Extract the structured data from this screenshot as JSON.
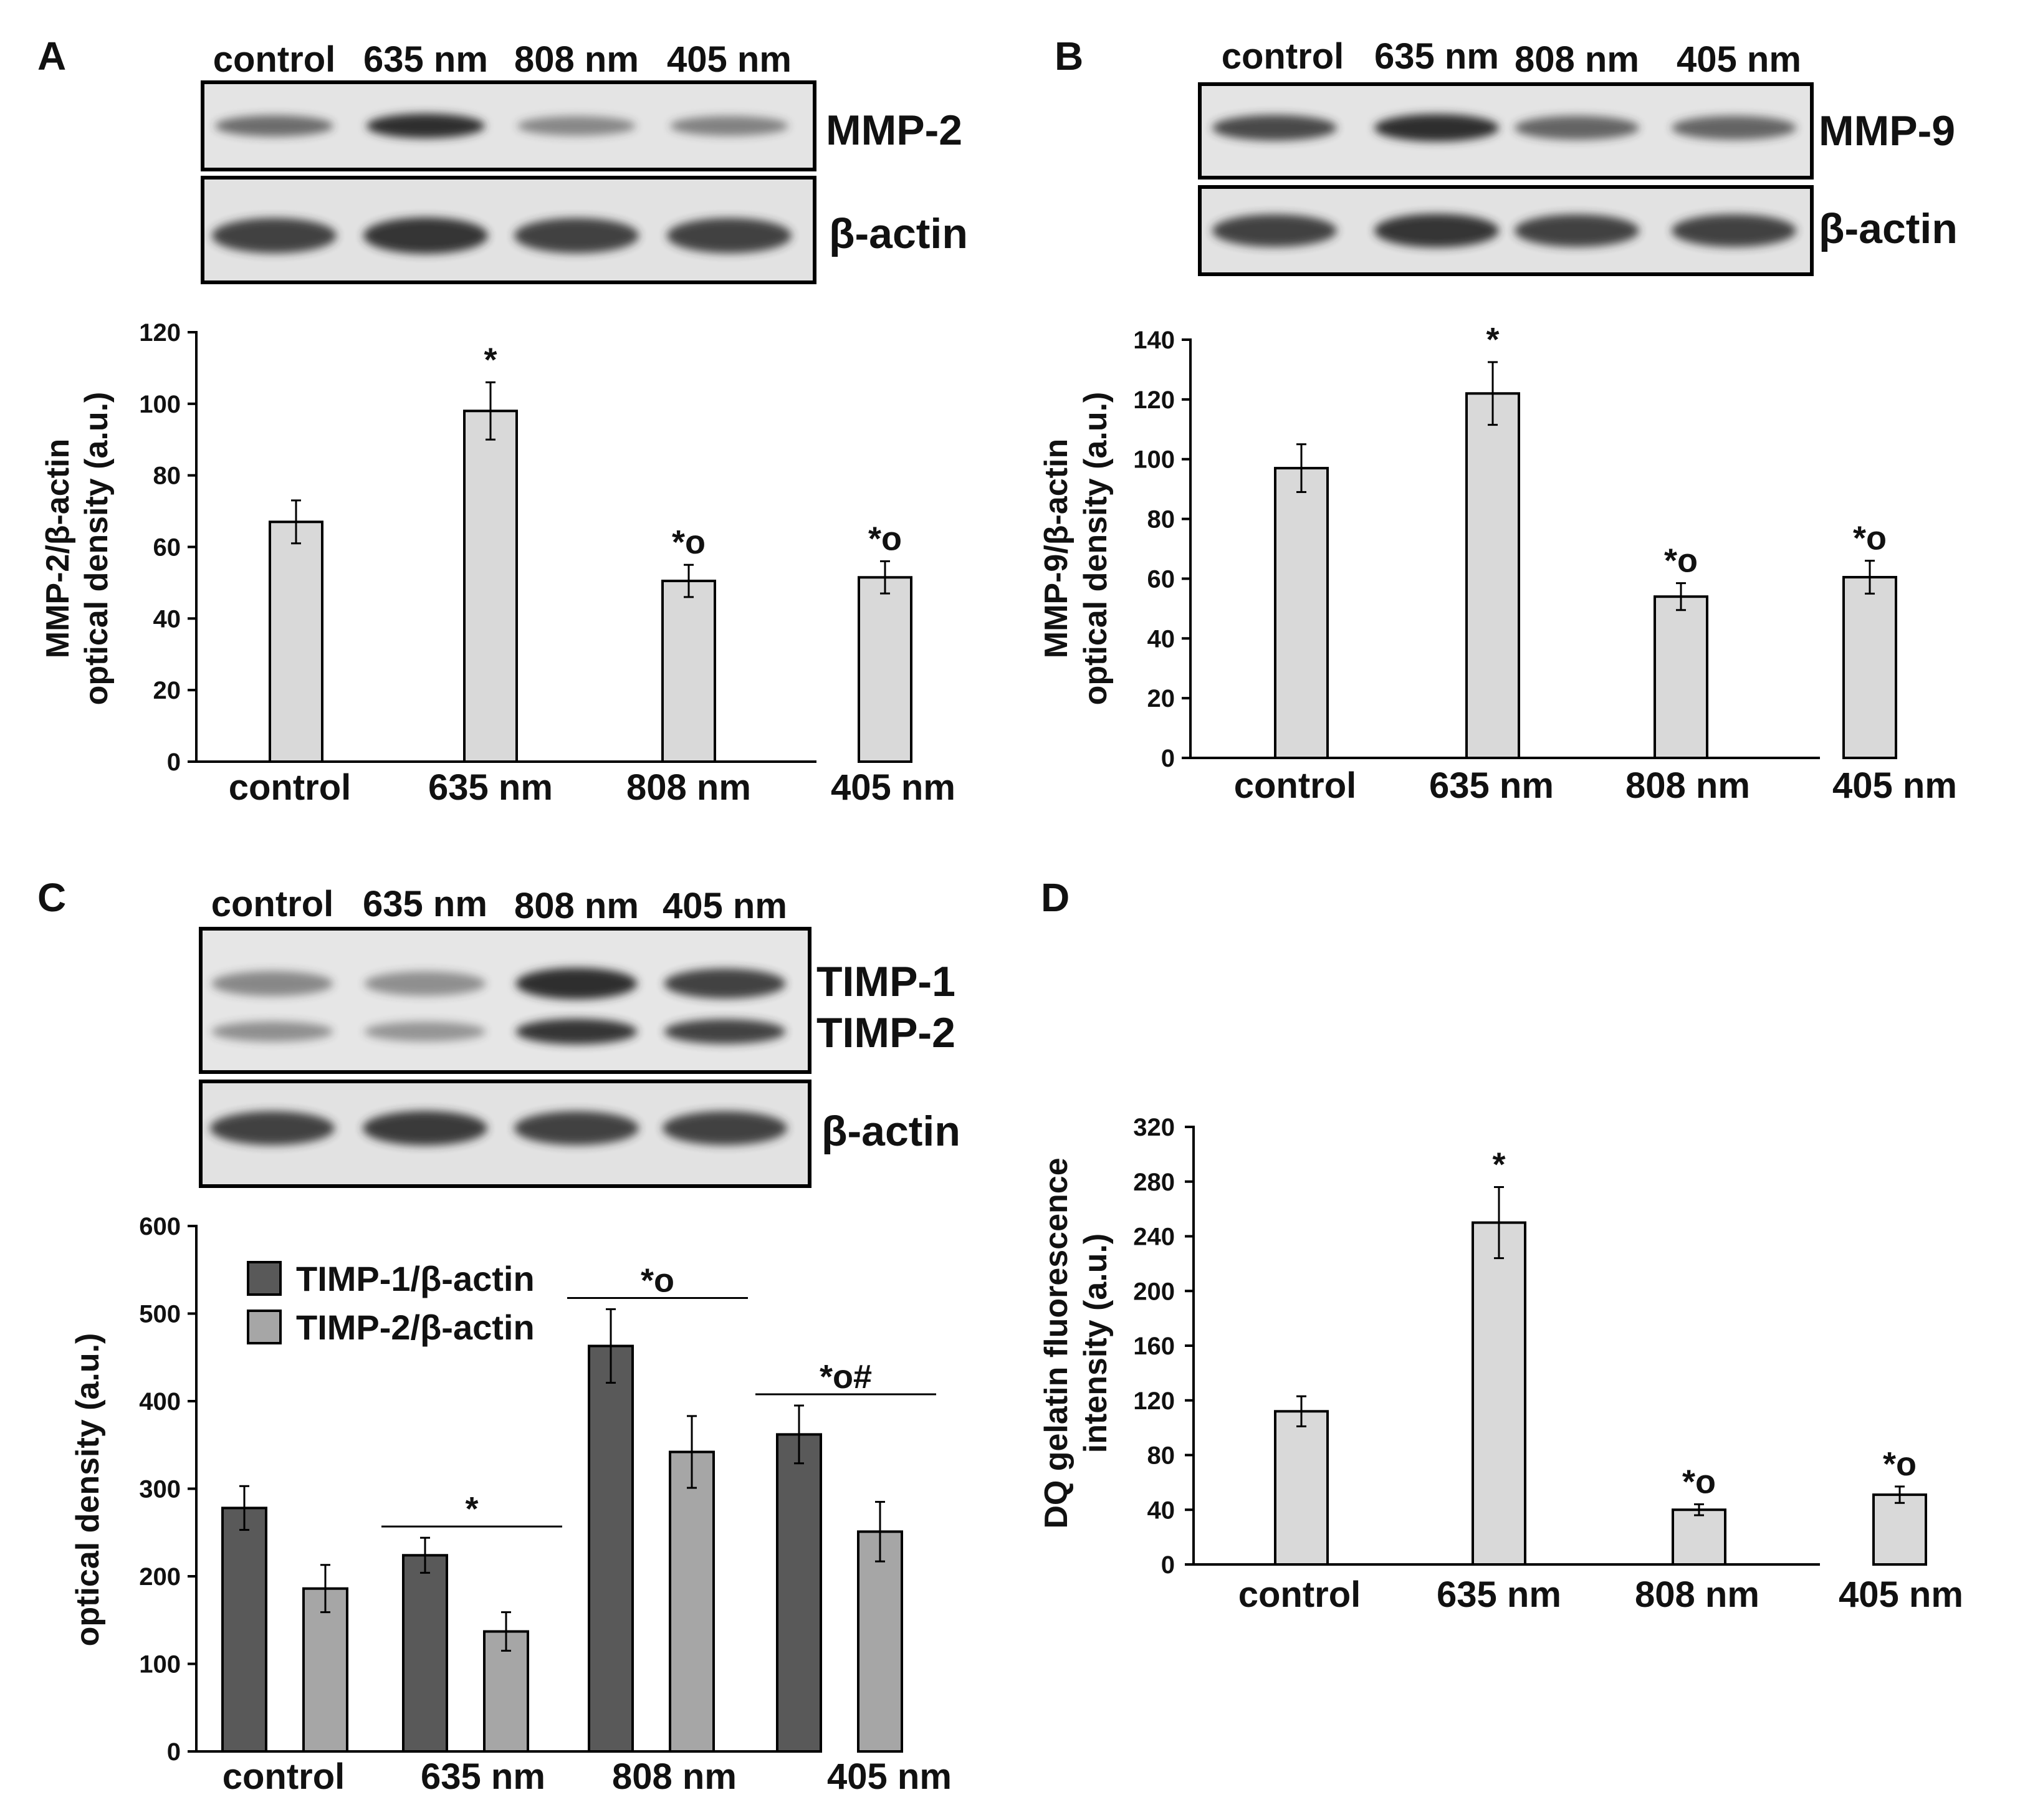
{
  "colors": {
    "bar_light": "#d9d9d9",
    "bar_dark": "#595959",
    "bar_medium": "#a6a6a6",
    "axis": "#000000",
    "blot_bg": "#e4e4e4",
    "band": "#2e2e2e"
  },
  "panels": {
    "A": {
      "label": "A",
      "lanes": [
        "control",
        "635 nm",
        "808 nm",
        "405 nm"
      ],
      "blots": [
        "MMP-2",
        "β-actin"
      ],
      "band_intensity": [
        [
          0.55,
          1.0,
          0.35,
          0.38
        ],
        [
          0.85,
          0.95,
          0.85,
          0.85
        ]
      ]
    },
    "B": {
      "label": "B",
      "lanes": [
        "control",
        "635 nm",
        "808 nm",
        "405 nm"
      ],
      "blots": [
        "MMP-9",
        "β-actin"
      ],
      "band_intensity": [
        [
          0.8,
          1.0,
          0.6,
          0.6
        ],
        [
          0.85,
          0.95,
          0.85,
          0.85
        ]
      ]
    },
    "C": {
      "label": "C",
      "lanes": [
        "control",
        "635 nm",
        "808 nm",
        "405 nm"
      ],
      "blots": [
        "TIMP-1",
        "TIMP-2",
        "β-actin"
      ],
      "band_intensity": [
        [
          0.35,
          0.3,
          1.0,
          0.85
        ],
        [
          0.3,
          0.25,
          0.95,
          0.85
        ],
        [
          0.85,
          0.9,
          0.85,
          0.85
        ]
      ]
    },
    "D": {
      "label": "D"
    }
  },
  "chart_data": [
    {
      "panel": "A",
      "type": "bar",
      "categories": [
        "control",
        "635 nm",
        "808 nm",
        "405 nm"
      ],
      "values": [
        67,
        98,
        50.5,
        51.5
      ],
      "errors": [
        6,
        8,
        4.5,
        4.5
      ],
      "significance": [
        "",
        "*",
        "*o",
        "*o"
      ],
      "ylabel": [
        "MMP-2/β-actin",
        "optical density (a.u.)"
      ],
      "ylim": [
        0,
        120
      ],
      "yticks": [
        0,
        20,
        40,
        60,
        80,
        100,
        120
      ]
    },
    {
      "panel": "B",
      "type": "bar",
      "categories": [
        "control",
        "635 nm",
        "808 nm",
        "405 nm"
      ],
      "values": [
        97,
        122,
        54,
        60.5
      ],
      "errors": [
        8,
        10.5,
        4.5,
        5.5
      ],
      "significance": [
        "",
        "*",
        "*o",
        "*o"
      ],
      "ylabel": [
        "MMP-9/β-actin",
        "optical density (a.u.)"
      ],
      "ylim": [
        0,
        140
      ],
      "yticks": [
        0,
        20,
        40,
        60,
        80,
        100,
        120,
        140
      ]
    },
    {
      "panel": "C",
      "type": "bar",
      "categories": [
        "control",
        "635 nm",
        "808 nm",
        "405 nm"
      ],
      "series": [
        {
          "name": "TIMP-1/β-actin",
          "values": [
            278,
            224,
            463,
            362
          ],
          "errors": [
            25,
            20,
            42,
            33
          ]
        },
        {
          "name": "TIMP-2/β-actin",
          "values": [
            186,
            137,
            342,
            251
          ],
          "errors": [
            27,
            22,
            41,
            34
          ]
        }
      ],
      "significance": [
        "",
        "*",
        "*o",
        "*o#"
      ],
      "ylabel": [
        "optical density (a.u.)"
      ],
      "ylim": [
        0,
        600
      ],
      "yticks": [
        0,
        100,
        200,
        300,
        400,
        500,
        600
      ]
    },
    {
      "panel": "D",
      "type": "bar",
      "categories": [
        "control",
        "635 nm",
        "808 nm",
        "405 nm"
      ],
      "values": [
        112,
        250,
        40,
        51
      ],
      "errors": [
        11,
        26,
        4,
        6
      ],
      "significance": [
        "",
        "*",
        "*o",
        "*o"
      ],
      "ylabel": [
        "DQ gelatin fluorescence",
        "intensity (a.u.)"
      ],
      "ylim": [
        0,
        320
      ],
      "yticks": [
        0,
        40,
        80,
        120,
        160,
        200,
        240,
        280,
        320
      ]
    }
  ]
}
